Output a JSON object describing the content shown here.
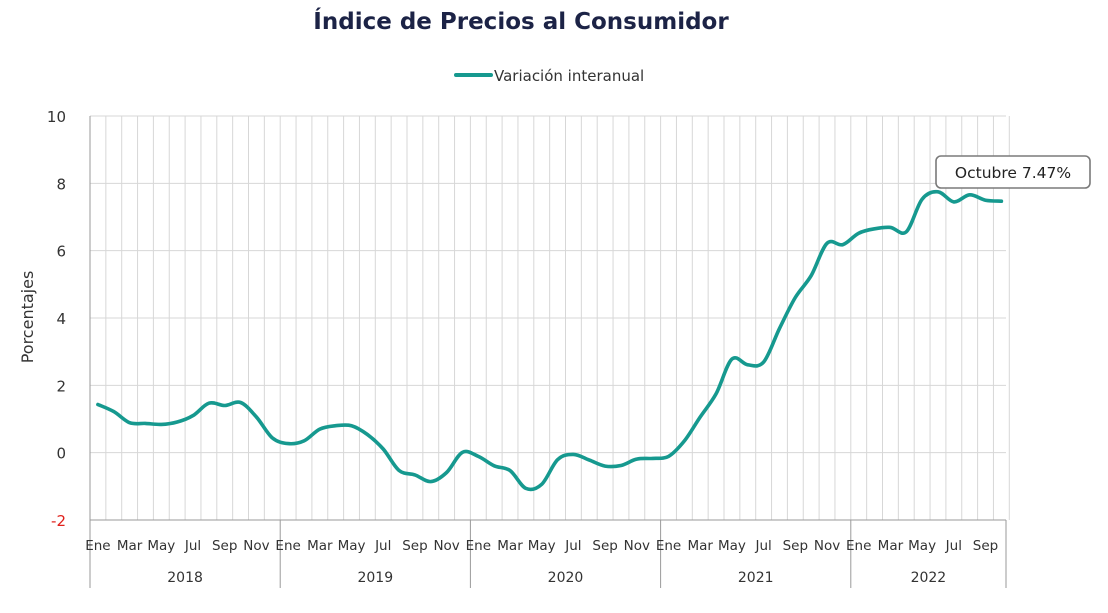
{
  "chart_data": {
    "type": "line",
    "title": "Índice de Precios al Consumidor",
    "ylabel": "Porcentajes",
    "xlabel": "",
    "ylim": [
      -2,
      10
    ],
    "yticks": [
      -2,
      0,
      2,
      4,
      6,
      8,
      10
    ],
    "legend_position": "top-center",
    "grid": true,
    "colors": {
      "line": "#16998f",
      "negative_tick": "#e0201b",
      "title": "#1c2346"
    },
    "series": [
      {
        "name": "Variación interanual",
        "x": [
          "2018-01",
          "2018-02",
          "2018-03",
          "2018-04",
          "2018-05",
          "2018-06",
          "2018-07",
          "2018-08",
          "2018-09",
          "2018-10",
          "2018-11",
          "2018-12",
          "2019-01",
          "2019-02",
          "2019-03",
          "2019-04",
          "2019-05",
          "2019-06",
          "2019-07",
          "2019-08",
          "2019-09",
          "2019-10",
          "2019-11",
          "2019-12",
          "2020-01",
          "2020-02",
          "2020-03",
          "2020-04",
          "2020-05",
          "2020-06",
          "2020-07",
          "2020-08",
          "2020-09",
          "2020-10",
          "2020-11",
          "2020-12",
          "2021-01",
          "2021-02",
          "2021-03",
          "2021-04",
          "2021-05",
          "2021-06",
          "2021-07",
          "2021-08",
          "2021-09",
          "2021-10",
          "2021-11",
          "2021-12",
          "2022-01",
          "2022-02",
          "2022-03",
          "2022-04",
          "2022-05",
          "2022-06",
          "2022-07",
          "2022-08",
          "2022-09",
          "2022-10"
        ],
        "values": [
          1.43,
          1.22,
          0.89,
          0.87,
          0.84,
          0.91,
          1.1,
          1.47,
          1.4,
          1.49,
          1.06,
          0.44,
          0.27,
          0.35,
          0.7,
          0.8,
          0.8,
          0.54,
          0.11,
          -0.53,
          -0.66,
          -0.86,
          -0.59,
          0.01,
          -0.11,
          -0.39,
          -0.53,
          -1.06,
          -0.94,
          -0.21,
          -0.05,
          -0.22,
          -0.4,
          -0.38,
          -0.19,
          -0.17,
          -0.11,
          0.35,
          1.06,
          1.75,
          2.78,
          2.61,
          2.69,
          3.69,
          4.61,
          5.26,
          6.22,
          6.18,
          6.52,
          6.65,
          6.69,
          6.56,
          7.53,
          7.75,
          7.45,
          7.66,
          7.5,
          7.47
        ]
      }
    ],
    "month_labels": [
      "Ene",
      "Mar",
      "May",
      "Jul",
      "Sep",
      "Nov"
    ],
    "years": [
      "2018",
      "2019",
      "2020",
      "2021",
      "2022"
    ],
    "annotation": "Octubre 7.47%"
  }
}
